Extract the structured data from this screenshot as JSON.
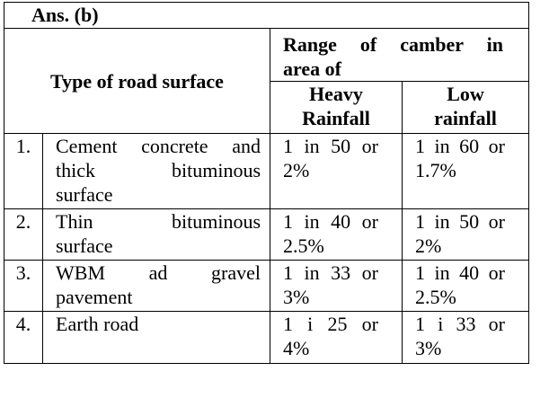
{
  "title": "Ans. (b)",
  "header": {
    "type_col": "Type of road surface",
    "range_line1": "Range of camber in",
    "range_line2": "area of",
    "heavy_line1": "Heavy",
    "heavy_line2": "Rainfall",
    "low_line1": "Low",
    "low_line2": "rainfall"
  },
  "rows": [
    {
      "num": "1.",
      "type": [
        "Cement concrete and",
        "thick bituminous",
        "surface"
      ],
      "heavy": [
        "1 in 50 or",
        "2%"
      ],
      "low": [
        "1 in 60 or",
        "1.7%"
      ]
    },
    {
      "num": "2.",
      "type": [
        "Thin bituminous",
        "surface"
      ],
      "heavy": [
        "1 in 40 or",
        "2.5%"
      ],
      "low": [
        "1 in 50 or",
        "2%"
      ]
    },
    {
      "num": "3.",
      "type": [
        "WBM ad gravel",
        "pavement"
      ],
      "heavy": [
        "1 in 33 or",
        "3%"
      ],
      "low": [
        "1 in 40 or",
        "2.5%"
      ]
    },
    {
      "num": "4.",
      "type": [
        "Earth road"
      ],
      "heavy": [
        "1 i 25 or",
        "4%"
      ],
      "low": [
        "1 i 33 or",
        "3%"
      ]
    }
  ]
}
